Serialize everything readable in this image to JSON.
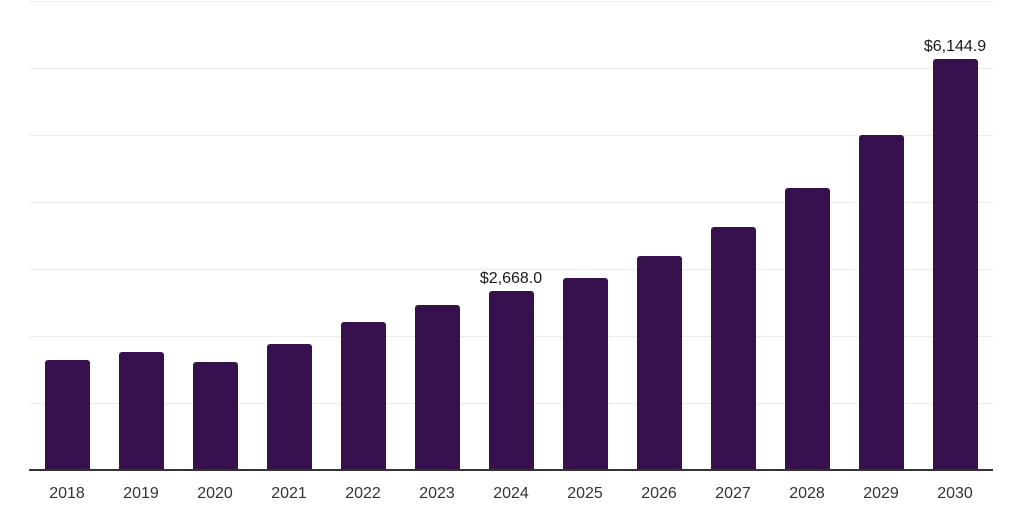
{
  "colors": {
    "bar": "#36114d",
    "gridline": "#ececec",
    "axis_line": "#333333",
    "year_label": "#333333",
    "point_label": "#1a1a1a",
    "background": "#ffffff"
  },
  "chart_data": {
    "type": "bar",
    "title": "",
    "xlabel": "",
    "ylabel": "",
    "categories": [
      "2018",
      "2019",
      "2020",
      "2021",
      "2022",
      "2023",
      "2024",
      "2025",
      "2026",
      "2027",
      "2028",
      "2029",
      "2030"
    ],
    "values": [
      1640,
      1770,
      1615,
      1880,
      2205,
      2470,
      2668.0,
      2875,
      3200,
      3625,
      4215,
      5010,
      6144.9
    ],
    "point_labels": [
      null,
      null,
      null,
      null,
      null,
      null,
      "$2,668.0",
      null,
      null,
      null,
      null,
      null,
      "$6,144.9"
    ],
    "ylim": [
      0,
      7000
    ],
    "gridline_step": 1000,
    "grid": "horizontal only, no y-axis tick labels",
    "legend": "none"
  }
}
